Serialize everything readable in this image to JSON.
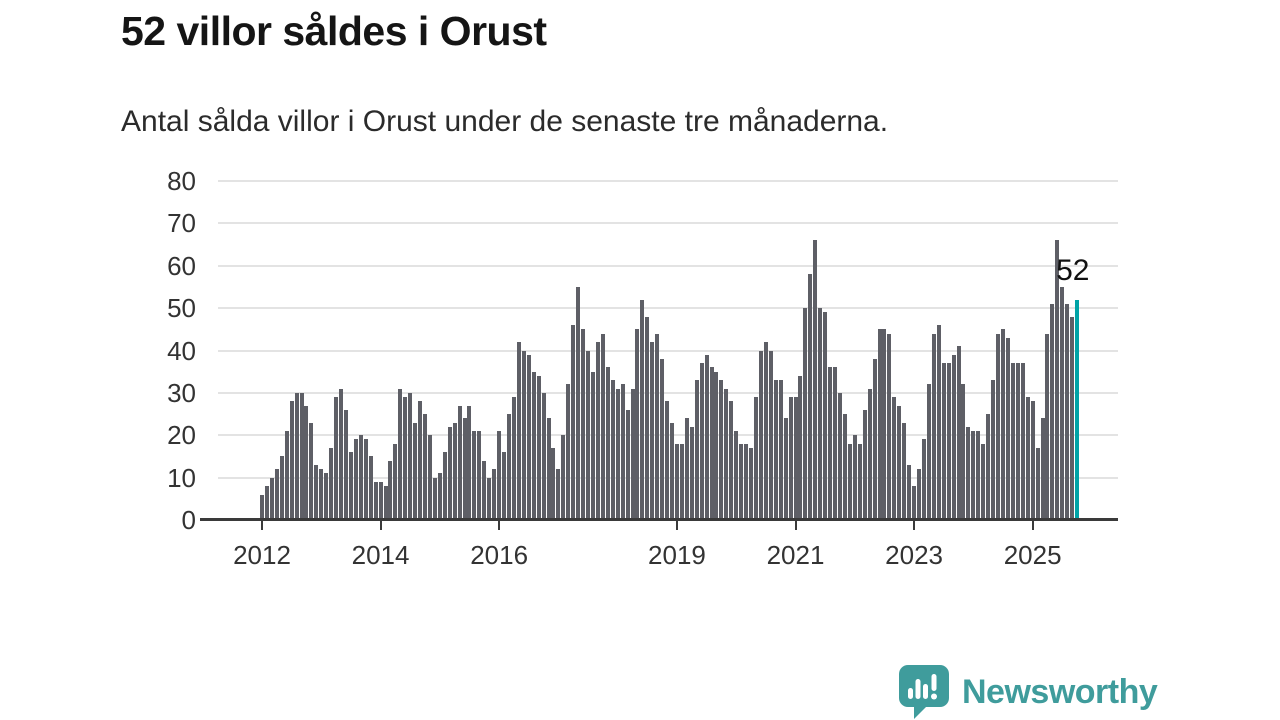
{
  "title": "52 villor såldes i Orust",
  "subtitle": "Antal sålda villor i Orust under de senaste tre månaderna.",
  "annotation": {
    "label": "52"
  },
  "footer": {
    "brand": "Newsworthy",
    "logo_icon": "speech-bubble-bar-chart-icon"
  },
  "colors": {
    "bar": "#5e5f66",
    "highlight": "#00a3a6",
    "axis": "#3a3a3a",
    "grid": "#e3e3e3",
    "logo": "#3f9c9c",
    "text": "#2b2b2b"
  },
  "chart_data": {
    "type": "bar",
    "title": "52 villor såldes i Orust",
    "subtitle": "Antal sålda villor i Orust under de senaste tre månaderna.",
    "xlabel": "",
    "ylabel": "",
    "x_start": "2012-01",
    "x_end": "2025-10",
    "x_unit": "month",
    "ylim": [
      0,
      80
    ],
    "yticks": [
      0,
      10,
      20,
      30,
      40,
      50,
      60,
      70,
      80
    ],
    "grid": true,
    "legend_position": "none",
    "highlight_index": 165,
    "highlight_value": 52,
    "annotation_label": "52",
    "xticks": [
      {
        "label": "2012",
        "index": 0
      },
      {
        "label": "2014",
        "index": 24
      },
      {
        "label": "2016",
        "index": 48
      },
      {
        "label": "2019",
        "index": 84
      },
      {
        "label": "2021",
        "index": 108
      },
      {
        "label": "2023",
        "index": 132
      },
      {
        "label": "2025",
        "index": 156
      }
    ],
    "values": [
      6,
      8,
      10,
      12,
      15,
      21,
      28,
      30,
      30,
      27,
      23,
      13,
      12,
      11,
      17,
      29,
      31,
      26,
      16,
      19,
      20,
      19,
      15,
      9,
      9,
      8,
      14,
      18,
      31,
      29,
      30,
      23,
      28,
      25,
      20,
      10,
      11,
      16,
      22,
      23,
      27,
      24,
      27,
      21,
      21,
      14,
      10,
      12,
      21,
      16,
      25,
      29,
      42,
      40,
      39,
      35,
      34,
      30,
      24,
      17,
      12,
      20,
      32,
      46,
      55,
      45,
      40,
      35,
      42,
      44,
      36,
      33,
      31,
      32,
      26,
      31,
      45,
      52,
      48,
      42,
      44,
      38,
      28,
      23,
      18,
      18,
      24,
      22,
      33,
      37,
      39,
      36,
      35,
      33,
      31,
      28,
      21,
      18,
      18,
      17,
      29,
      40,
      42,
      40,
      33,
      33,
      24,
      29,
      29,
      34,
      50,
      58,
      66,
      50,
      49,
      36,
      36,
      30,
      25,
      18,
      20,
      18,
      26,
      31,
      38,
      45,
      45,
      44,
      29,
      27,
      23,
      13,
      8,
      12,
      19,
      32,
      44,
      46,
      37,
      37,
      39,
      41,
      32,
      22,
      21,
      21,
      18,
      25,
      33,
      44,
      45,
      43,
      37,
      37,
      37,
      29,
      28,
      17,
      24,
      44,
      51,
      66,
      55,
      51,
      48,
      52
    ]
  }
}
